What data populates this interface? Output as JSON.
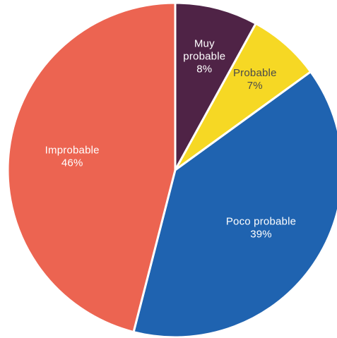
{
  "chart_data": {
    "type": "pie",
    "categories": [
      "Muy probable",
      "Probable",
      "Poco probable",
      "Improbable"
    ],
    "values": [
      8,
      7,
      39,
      46
    ],
    "value_labels": [
      "8%",
      "7%",
      "39%",
      "46%"
    ],
    "label_lines": [
      [
        "Muy",
        "probable"
      ],
      [
        "Probable"
      ],
      [
        "Poco probable"
      ],
      [
        "Improbable"
      ]
    ],
    "colors": [
      "#4f2346",
      "#f6d824",
      "#1f63b0",
      "#ec6451"
    ],
    "label_colors": [
      "#ffffff",
      "#4a4a4a",
      "#ffffff",
      "#ffffff"
    ],
    "start_angle_deg": 0,
    "direction": "clockwise",
    "legend": "none",
    "title": ""
  }
}
